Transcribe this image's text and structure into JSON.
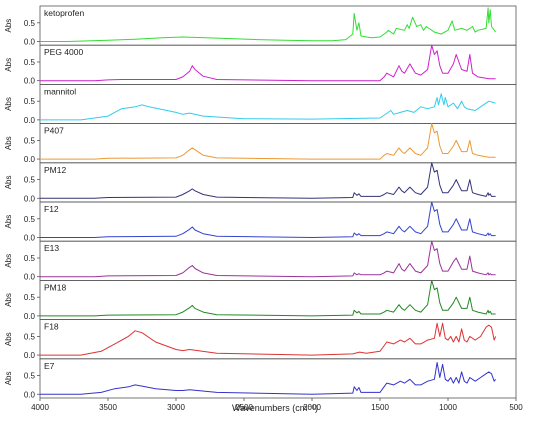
{
  "chart_data": {
    "type": "line",
    "layout": "stacked-panels",
    "xlabel": "Wavenumbers (cm⁻¹)",
    "xlim": [
      4000,
      500
    ],
    "x_reversed": true,
    "x_ticks": [
      "4000",
      "3500",
      "3000",
      "2500",
      "2000",
      "1500",
      "1000",
      "500"
    ],
    "x_tick_values": [
      4000,
      3500,
      3000,
      2500,
      2000,
      1500,
      1000,
      500
    ],
    "ylabel": "Abs",
    "y_ticks": [
      "0.0",
      "0.5"
    ],
    "y_tick_values": [
      0.0,
      0.5
    ],
    "ylim": [
      -0.1,
      0.95
    ],
    "grid": false,
    "legend": "none",
    "panels": [
      {
        "name": "ketoprofen",
        "color": "#33dd33",
        "x": [
          4000,
          3800,
          3500,
          3300,
          3100,
          2950,
          2700,
          2400,
          2200,
          2000,
          1850,
          1750,
          1700,
          1690,
          1670,
          1655,
          1640,
          1600,
          1560,
          1500,
          1450,
          1440,
          1400,
          1380,
          1320,
          1300,
          1285,
          1260,
          1230,
          1200,
          1180,
          1160,
          1100,
          1050,
          1000,
          970,
          950,
          900,
          860,
          820,
          800,
          780,
          720,
          705,
          700,
          690,
          680,
          650
        ],
        "y": [
          0.0,
          0.0,
          0.03,
          0.06,
          0.1,
          0.12,
          0.09,
          0.05,
          0.03,
          0.02,
          0.02,
          0.05,
          0.2,
          0.75,
          0.3,
          0.5,
          0.15,
          0.12,
          0.1,
          0.12,
          0.25,
          0.3,
          0.2,
          0.35,
          0.3,
          0.45,
          0.35,
          0.65,
          0.4,
          0.45,
          0.3,
          0.4,
          0.25,
          0.2,
          0.3,
          0.55,
          0.3,
          0.35,
          0.3,
          0.4,
          0.25,
          0.3,
          0.35,
          0.9,
          0.5,
          0.85,
          0.4,
          0.25
        ]
      },
      {
        "name": "PEG 4000",
        "color": "#cc22cc",
        "x": [
          4000,
          3600,
          3500,
          3400,
          3000,
          2950,
          2900,
          2880,
          2860,
          2800,
          2700,
          2000,
          1500,
          1470,
          1450,
          1400,
          1360,
          1340,
          1320,
          1280,
          1240,
          1200,
          1150,
          1120,
          1100,
          1080,
          1060,
          1040,
          1000,
          960,
          940,
          900,
          860,
          840,
          820,
          780,
          700,
          650
        ],
        "y": [
          0.0,
          0.0,
          0.02,
          0.03,
          0.03,
          0.1,
          0.25,
          0.4,
          0.3,
          0.12,
          0.03,
          0.0,
          0.0,
          0.1,
          0.2,
          0.1,
          0.4,
          0.25,
          0.2,
          0.45,
          0.2,
          0.15,
          0.3,
          0.95,
          0.7,
          0.8,
          0.4,
          0.2,
          0.2,
          0.45,
          0.7,
          0.3,
          0.25,
          0.7,
          0.2,
          0.1,
          0.05,
          0.05
        ]
      },
      {
        "name": "mannitol",
        "color": "#33ccee",
        "x": [
          4000,
          3700,
          3500,
          3400,
          3300,
          3250,
          3200,
          3000,
          2950,
          2900,
          2800,
          2500,
          2000,
          1500,
          1420,
          1400,
          1350,
          1300,
          1250,
          1200,
          1150,
          1100,
          1080,
          1070,
          1050,
          1030,
          1020,
          1000,
          960,
          930,
          900,
          880,
          860,
          800,
          760,
          700,
          650
        ],
        "y": [
          0.0,
          0.0,
          0.1,
          0.3,
          0.35,
          0.4,
          0.35,
          0.2,
          0.15,
          0.18,
          0.1,
          0.03,
          0.02,
          0.05,
          0.25,
          0.15,
          0.2,
          0.25,
          0.2,
          0.35,
          0.3,
          0.35,
          0.6,
          0.4,
          0.7,
          0.4,
          0.6,
          0.35,
          0.45,
          0.3,
          0.5,
          0.35,
          0.3,
          0.25,
          0.35,
          0.5,
          0.45
        ]
      },
      {
        "name": "P407",
        "color": "#ee9933",
        "x": [
          4000,
          3600,
          3500,
          3000,
          2950,
          2900,
          2880,
          2860,
          2800,
          2700,
          2000,
          1500,
          1470,
          1450,
          1400,
          1360,
          1340,
          1320,
          1280,
          1240,
          1200,
          1150,
          1120,
          1100,
          1080,
          1060,
          1040,
          1000,
          960,
          940,
          900,
          860,
          840,
          820,
          780,
          700,
          650
        ],
        "y": [
          0.0,
          0.0,
          0.02,
          0.03,
          0.1,
          0.25,
          0.3,
          0.25,
          0.1,
          0.03,
          0.0,
          0.0,
          0.1,
          0.15,
          0.1,
          0.3,
          0.2,
          0.15,
          0.3,
          0.15,
          0.1,
          0.3,
          0.95,
          0.7,
          0.75,
          0.35,
          0.15,
          0.15,
          0.35,
          0.5,
          0.2,
          0.2,
          0.5,
          0.15,
          0.1,
          0.05,
          0.05
        ]
      },
      {
        "name": "PM12",
        "color": "#33337a",
        "x": [
          4000,
          3600,
          3500,
          3000,
          2950,
          2900,
          2880,
          2860,
          2800,
          2700,
          2000,
          1700,
          1690,
          1670,
          1655,
          1640,
          1600,
          1500,
          1470,
          1450,
          1400,
          1360,
          1340,
          1320,
          1280,
          1240,
          1200,
          1150,
          1120,
          1100,
          1080,
          1060,
          1040,
          1000,
          960,
          940,
          900,
          860,
          840,
          820,
          780,
          720,
          705,
          700,
          690,
          680,
          650
        ],
        "y": [
          0.0,
          0.0,
          0.02,
          0.03,
          0.1,
          0.2,
          0.25,
          0.2,
          0.1,
          0.03,
          0.0,
          0.02,
          0.15,
          0.08,
          0.12,
          0.05,
          0.05,
          0.05,
          0.1,
          0.15,
          0.1,
          0.3,
          0.2,
          0.15,
          0.3,
          0.15,
          0.1,
          0.3,
          0.95,
          0.7,
          0.75,
          0.35,
          0.15,
          0.15,
          0.35,
          0.5,
          0.2,
          0.2,
          0.5,
          0.15,
          0.1,
          0.05,
          0.15,
          0.08,
          0.12,
          0.05,
          0.05
        ]
      },
      {
        "name": "F12",
        "color": "#3344cc",
        "x": [
          4000,
          3600,
          3500,
          3000,
          2950,
          2900,
          2880,
          2860,
          2800,
          2700,
          2000,
          1700,
          1690,
          1670,
          1655,
          1640,
          1600,
          1500,
          1470,
          1450,
          1400,
          1360,
          1340,
          1320,
          1280,
          1240,
          1200,
          1150,
          1120,
          1100,
          1080,
          1060,
          1040,
          1000,
          960,
          940,
          900,
          860,
          840,
          820,
          780,
          720,
          705,
          700,
          690,
          680,
          650
        ],
        "y": [
          0.0,
          0.0,
          0.02,
          0.03,
          0.1,
          0.22,
          0.28,
          0.2,
          0.1,
          0.03,
          0.0,
          0.02,
          0.12,
          0.06,
          0.1,
          0.05,
          0.05,
          0.05,
          0.1,
          0.15,
          0.1,
          0.3,
          0.2,
          0.15,
          0.3,
          0.15,
          0.1,
          0.3,
          0.95,
          0.7,
          0.75,
          0.35,
          0.15,
          0.15,
          0.35,
          0.5,
          0.2,
          0.2,
          0.5,
          0.15,
          0.1,
          0.05,
          0.12,
          0.06,
          0.1,
          0.05,
          0.05
        ]
      },
      {
        "name": "E13",
        "color": "#993399",
        "x": [
          4000,
          3600,
          3500,
          3000,
          2950,
          2900,
          2880,
          2860,
          2800,
          2700,
          2000,
          1700,
          1690,
          1670,
          1655,
          1640,
          1600,
          1500,
          1470,
          1450,
          1400,
          1360,
          1340,
          1320,
          1280,
          1240,
          1200,
          1150,
          1120,
          1100,
          1080,
          1060,
          1040,
          1000,
          960,
          940,
          900,
          860,
          840,
          820,
          780,
          720,
          705,
          700,
          690,
          680,
          650
        ],
        "y": [
          0.0,
          0.0,
          0.02,
          0.03,
          0.1,
          0.25,
          0.3,
          0.22,
          0.1,
          0.03,
          0.0,
          0.02,
          0.1,
          0.05,
          0.08,
          0.05,
          0.05,
          0.05,
          0.1,
          0.15,
          0.1,
          0.35,
          0.2,
          0.15,
          0.35,
          0.15,
          0.1,
          0.3,
          0.95,
          0.7,
          0.75,
          0.35,
          0.15,
          0.15,
          0.4,
          0.5,
          0.2,
          0.2,
          0.55,
          0.15,
          0.1,
          0.05,
          0.1,
          0.05,
          0.08,
          0.05,
          0.05
        ]
      },
      {
        "name": "PM18",
        "color": "#228822",
        "x": [
          4000,
          3600,
          3500,
          3000,
          2950,
          2900,
          2880,
          2860,
          2800,
          2700,
          2000,
          1700,
          1690,
          1670,
          1655,
          1640,
          1600,
          1500,
          1470,
          1450,
          1400,
          1360,
          1340,
          1320,
          1280,
          1240,
          1200,
          1150,
          1120,
          1100,
          1080,
          1060,
          1040,
          1000,
          960,
          940,
          900,
          860,
          840,
          820,
          780,
          720,
          705,
          700,
          690,
          680,
          650
        ],
        "y": [
          0.0,
          0.0,
          0.02,
          0.03,
          0.1,
          0.22,
          0.28,
          0.2,
          0.1,
          0.03,
          0.0,
          0.02,
          0.15,
          0.08,
          0.12,
          0.05,
          0.05,
          0.05,
          0.1,
          0.15,
          0.1,
          0.3,
          0.2,
          0.15,
          0.3,
          0.15,
          0.1,
          0.3,
          0.95,
          0.7,
          0.75,
          0.35,
          0.15,
          0.15,
          0.35,
          0.5,
          0.2,
          0.2,
          0.5,
          0.15,
          0.1,
          0.05,
          0.15,
          0.08,
          0.12,
          0.05,
          0.05
        ]
      },
      {
        "name": "F18",
        "color": "#dd3333",
        "x": [
          4000,
          3700,
          3550,
          3450,
          3350,
          3300,
          3250,
          3150,
          3000,
          2950,
          2900,
          2700,
          2000,
          1700,
          1650,
          1600,
          1500,
          1450,
          1400,
          1350,
          1320,
          1280,
          1240,
          1200,
          1150,
          1100,
          1080,
          1060,
          1040,
          1020,
          1000,
          980,
          960,
          940,
          920,
          900,
          880,
          860,
          840,
          800,
          760,
          720,
          700,
          680,
          660,
          650
        ],
        "y": [
          0.0,
          0.0,
          0.1,
          0.3,
          0.5,
          0.65,
          0.6,
          0.35,
          0.15,
          0.12,
          0.15,
          0.05,
          0.0,
          0.03,
          0.08,
          0.05,
          0.1,
          0.35,
          0.3,
          0.4,
          0.35,
          0.45,
          0.3,
          0.3,
          0.4,
          0.45,
          0.85,
          0.5,
          0.85,
          0.45,
          0.4,
          0.5,
          0.35,
          0.5,
          0.35,
          0.7,
          0.4,
          0.35,
          0.5,
          0.4,
          0.5,
          0.75,
          0.8,
          0.75,
          0.4,
          0.5
        ]
      },
      {
        "name": "E7",
        "color": "#3333cc",
        "x": [
          4000,
          3700,
          3550,
          3450,
          3350,
          3300,
          3250,
          3150,
          3000,
          2950,
          2900,
          2700,
          2000,
          1700,
          1690,
          1670,
          1655,
          1640,
          1600,
          1500,
          1450,
          1400,
          1350,
          1320,
          1280,
          1240,
          1200,
          1150,
          1100,
          1080,
          1060,
          1040,
          1020,
          1000,
          980,
          960,
          940,
          920,
          900,
          880,
          860,
          840,
          800,
          760,
          720,
          700,
          680,
          660,
          650
        ],
        "y": [
          0.0,
          0.0,
          0.05,
          0.15,
          0.2,
          0.25,
          0.22,
          0.15,
          0.1,
          0.1,
          0.12,
          0.05,
          0.0,
          0.03,
          0.2,
          0.1,
          0.18,
          0.05,
          0.05,
          0.05,
          0.3,
          0.25,
          0.35,
          0.3,
          0.4,
          0.25,
          0.25,
          0.35,
          0.4,
          0.85,
          0.45,
          0.8,
          0.4,
          0.35,
          0.45,
          0.3,
          0.45,
          0.3,
          0.6,
          0.35,
          0.3,
          0.45,
          0.35,
          0.45,
          0.55,
          0.6,
          0.55,
          0.35,
          0.4
        ]
      }
    ]
  }
}
